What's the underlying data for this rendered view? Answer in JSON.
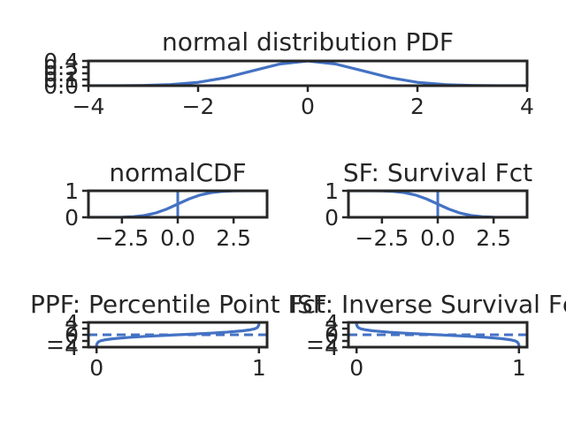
{
  "colors": {
    "line": "#4472c4",
    "axes": "#262626",
    "background": "#ffffff"
  },
  "chart_data": [
    {
      "id": "pdf",
      "type": "line",
      "title": "normal distribution PDF",
      "xlim": [
        -4,
        4
      ],
      "ylim": [
        0,
        0.4
      ],
      "xticks": [
        -4,
        -2,
        0,
        2,
        4
      ],
      "xtick_labels": [
        "−4",
        "−2",
        "0",
        "2",
        "4"
      ],
      "yticks": [
        0.0,
        0.1,
        0.2,
        0.3,
        0.4
      ],
      "ytick_labels": [
        "0.0",
        "0.1",
        "0.2",
        "0.3",
        "0.4"
      ],
      "series": [
        {
          "x": [
            -4,
            -3.5,
            -3,
            -2.5,
            -2,
            -1.5,
            -1,
            -0.5,
            0,
            0.5,
            1,
            1.5,
            2,
            2.5,
            3,
            3.5,
            4
          ],
          "y": [
            0.0001,
            0.0009,
            0.0044,
            0.0175,
            0.054,
            0.1295,
            0.242,
            0.3521,
            0.3989,
            0.3521,
            0.242,
            0.1295,
            0.054,
            0.0175,
            0.0044,
            0.0009,
            0.0001
          ]
        }
      ]
    },
    {
      "id": "cdf",
      "type": "line",
      "title": "normalCDF",
      "xlim": [
        -4,
        4
      ],
      "ylim": [
        0,
        1
      ],
      "xticks": [
        -2.5,
        0,
        2.5
      ],
      "xtick_labels": [
        "−2.5",
        "0.0",
        "2.5"
      ],
      "yticks": [
        0,
        1
      ],
      "ytick_labels": [
        "0",
        "1"
      ],
      "vline_x": 0,
      "series": [
        {
          "x": [
            -4,
            -3.5,
            -3,
            -2.5,
            -2,
            -1.5,
            -1,
            -0.5,
            0,
            0.5,
            1,
            1.5,
            2,
            2.5,
            3,
            3.5,
            4
          ],
          "y": [
            0.0,
            0.0002,
            0.0013,
            0.0062,
            0.0228,
            0.0668,
            0.1587,
            0.3085,
            0.5,
            0.6915,
            0.8413,
            0.9332,
            0.9772,
            0.9938,
            0.9987,
            0.9998,
            1.0
          ]
        }
      ]
    },
    {
      "id": "sf",
      "type": "line",
      "title": "SF: Survival Fct",
      "xlim": [
        -4,
        4
      ],
      "ylim": [
        0,
        1
      ],
      "xticks": [
        -2.5,
        0,
        2.5
      ],
      "xtick_labels": [
        "−2.5",
        "0.0",
        "2.5"
      ],
      "yticks": [
        0,
        1
      ],
      "ytick_labels": [
        "0",
        "1"
      ],
      "vline_x": 0,
      "series": [
        {
          "x": [
            -4,
            -3.5,
            -3,
            -2.5,
            -2,
            -1.5,
            -1,
            -0.5,
            0,
            0.5,
            1,
            1.5,
            2,
            2.5,
            3,
            3.5,
            4
          ],
          "y": [
            1.0,
            0.9998,
            0.9987,
            0.9938,
            0.9772,
            0.9332,
            0.8413,
            0.6915,
            0.5,
            0.3085,
            0.1587,
            0.0668,
            0.0228,
            0.0062,
            0.0013,
            0.0002,
            0.0
          ]
        }
      ]
    },
    {
      "id": "ppf",
      "type": "line",
      "title": "PPF: Percentile Point Fct",
      "xlim": [
        -0.05,
        1.05
      ],
      "ylim": [
        -4,
        4
      ],
      "xticks": [
        0,
        1
      ],
      "xtick_labels": [
        "0",
        "1"
      ],
      "yticks": [
        -4,
        -2,
        0,
        2,
        4
      ],
      "ytick_labels": [
        "−4",
        "−2",
        "0",
        "2",
        "4"
      ],
      "hline_y": 0,
      "series": [
        {
          "x": [
            0.0001,
            0.001,
            0.01,
            0.025,
            0.05,
            0.1,
            0.2,
            0.3,
            0.4,
            0.5,
            0.6,
            0.7,
            0.8,
            0.9,
            0.95,
            0.975,
            0.99,
            0.999,
            0.9999
          ],
          "y": [
            -3.719,
            -3.09,
            -2.326,
            -1.96,
            -1.645,
            -1.282,
            -0.842,
            -0.524,
            -0.253,
            0.0,
            0.253,
            0.524,
            0.842,
            1.282,
            1.645,
            1.96,
            2.326,
            3.09,
            3.719
          ]
        }
      ]
    },
    {
      "id": "isf",
      "type": "line",
      "title": "ISF: Inverse Survival Fct",
      "xlim": [
        -0.05,
        1.05
      ],
      "ylim": [
        -4,
        4
      ],
      "xticks": [
        0,
        1
      ],
      "xtick_labels": [
        "0",
        "1"
      ],
      "yticks": [
        -4,
        -2,
        0,
        2,
        4
      ],
      "ytick_labels": [
        "−4",
        "−2",
        "0",
        "2",
        "4"
      ],
      "hline_y": 0,
      "series": [
        {
          "x": [
            0.0001,
            0.001,
            0.01,
            0.025,
            0.05,
            0.1,
            0.2,
            0.3,
            0.4,
            0.5,
            0.6,
            0.7,
            0.8,
            0.9,
            0.95,
            0.975,
            0.99,
            0.999,
            0.9999
          ],
          "y": [
            3.719,
            3.09,
            2.326,
            1.96,
            1.645,
            1.282,
            0.842,
            0.524,
            0.253,
            0.0,
            -0.253,
            -0.524,
            -0.842,
            -1.282,
            -1.645,
            -1.96,
            -2.326,
            -3.09,
            -3.719
          ]
        }
      ]
    }
  ]
}
